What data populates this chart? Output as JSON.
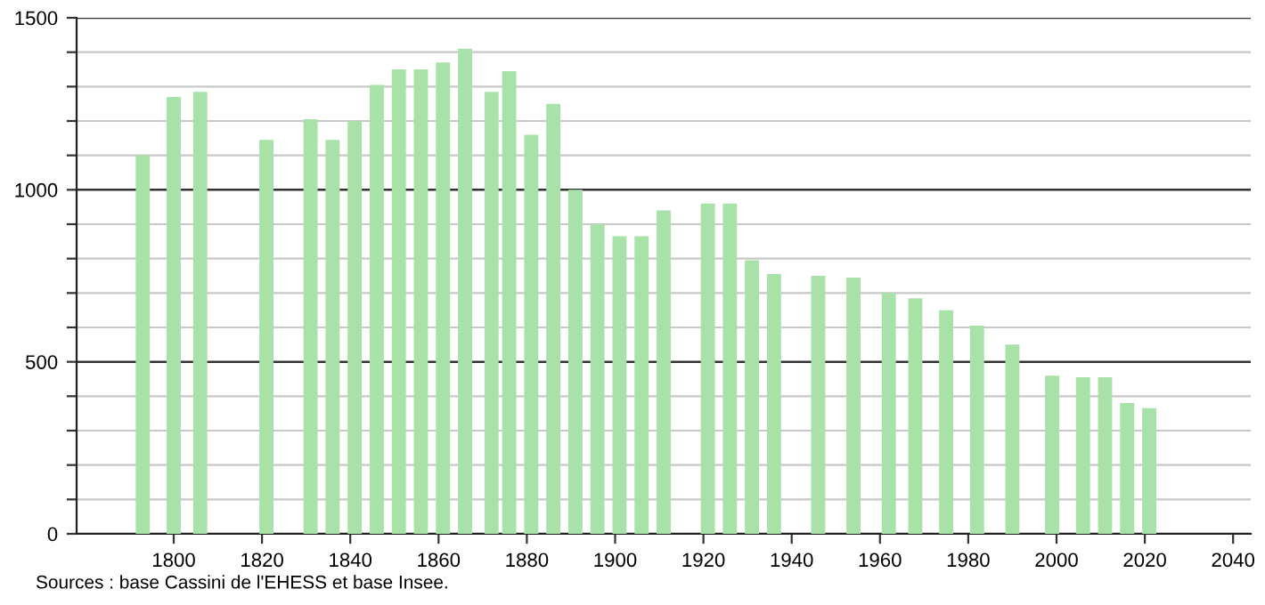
{
  "chart_data": {
    "type": "bar",
    "color": "#a8e2a8",
    "x": [
      1793,
      1800,
      1806,
      1821,
      1831,
      1836,
      1841,
      1846,
      1851,
      1856,
      1861,
      1866,
      1872,
      1876,
      1881,
      1886,
      1891,
      1896,
      1901,
      1906,
      1911,
      1921,
      1926,
      1931,
      1936,
      1946,
      1954,
      1962,
      1968,
      1975,
      1982,
      1990,
      1999,
      2006,
      2011,
      2016,
      2021
    ],
    "values": [
      1100,
      1270,
      1285,
      1145,
      1205,
      1145,
      1200,
      1305,
      1350,
      1350,
      1370,
      1410,
      1285,
      1345,
      1160,
      1250,
      1000,
      900,
      865,
      865,
      940,
      960,
      960,
      795,
      755,
      750,
      745,
      700,
      685,
      650,
      605,
      550,
      460,
      455,
      455,
      380,
      365
    ],
    "xlim": [
      1778,
      2044
    ],
    "xticks": [
      1800,
      1820,
      1840,
      1860,
      1880,
      1900,
      1920,
      1940,
      1960,
      1980,
      2000,
      2020,
      2040
    ],
    "ylim": [
      0,
      1500
    ],
    "yticks": [
      0,
      {
        "value": 100,
        "label": null
      },
      {
        "value": 200,
        "label": null
      },
      {
        "value": 300,
        "label": null
      },
      {
        "value": 400,
        "label": null
      },
      500,
      {
        "value": 600,
        "label": null
      },
      {
        "value": 700,
        "label": null
      },
      {
        "value": 800,
        "label": null
      },
      {
        "value": 900,
        "label": null
      },
      1000,
      {
        "value": 1100,
        "label": null
      },
      {
        "value": 1200,
        "label": null
      },
      {
        "value": 1300,
        "label": null
      },
      {
        "value": 1400,
        "label": null
      },
      1500
    ],
    "grid": "y",
    "annotations": [
      "Sources : base Cassini de l'EHESS et base Insee."
    ]
  }
}
